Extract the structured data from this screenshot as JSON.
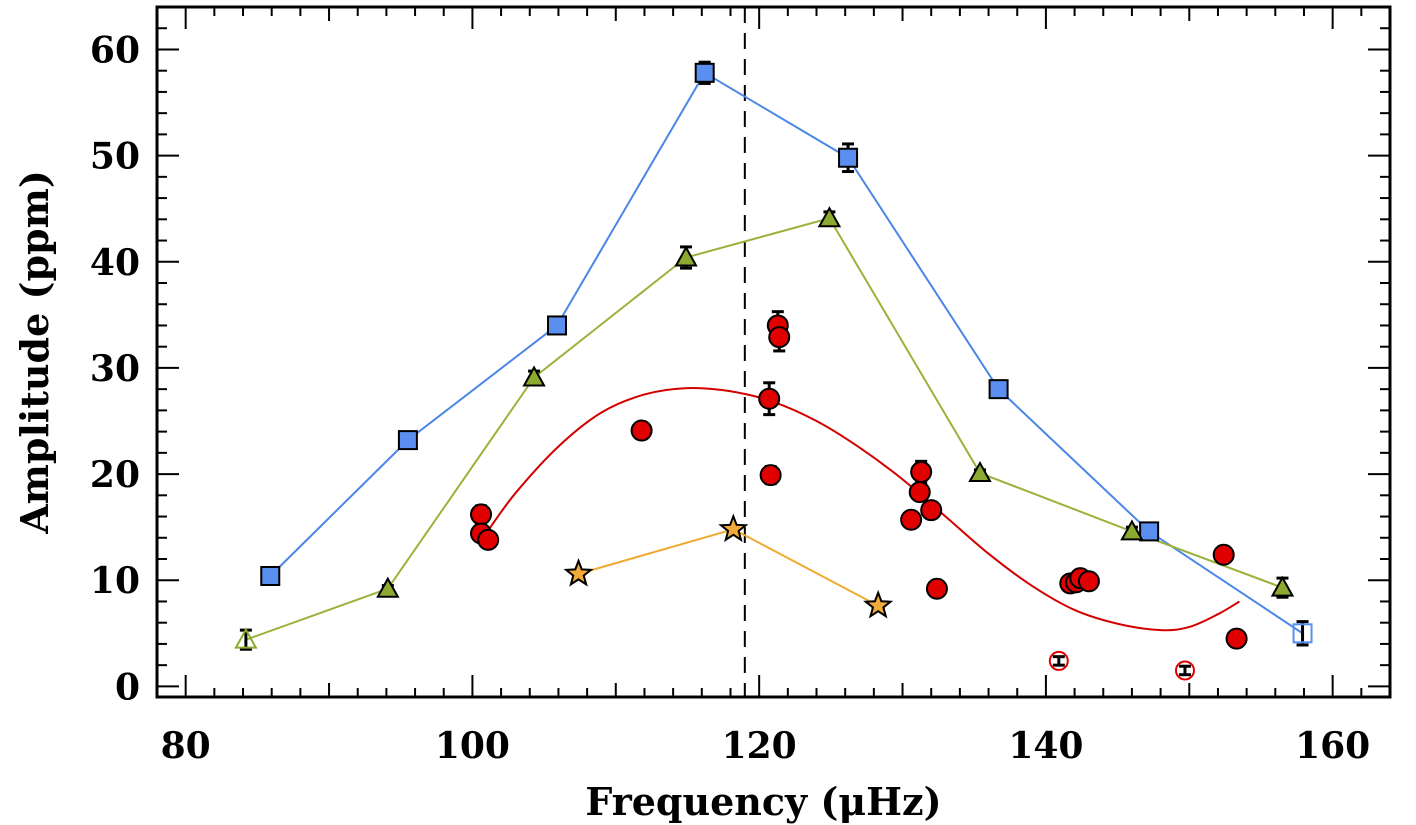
{
  "chart_data": {
    "type": "scatter",
    "xlabel": "Frequency (μHz)",
    "ylabel": "Amplitude (ppm)",
    "xlim": [
      78,
      164
    ],
    "ylim": [
      -1,
      64
    ],
    "xticks": [
      "80",
      "100",
      "120",
      "140",
      "160"
    ],
    "yticks": [
      "0",
      "10",
      "20",
      "30",
      "40",
      "50",
      "60"
    ],
    "xtick_values": [
      80,
      100,
      120,
      140,
      160
    ],
    "ytick_values": [
      0,
      10,
      20,
      30,
      40,
      50,
      60
    ],
    "vline_x": 119,
    "colors": {
      "blue": "#5B8FEF",
      "blue_line": "#4A86E8",
      "green": "#8BAA2F",
      "green_line": "#99B33A",
      "red": "#E00000",
      "red_line": "#D40000",
      "orange": "#F2AA3B",
      "orange_line": "#F0AA30"
    },
    "series": [
      {
        "name": "blue-squares",
        "marker": "square",
        "x": [
          85.9,
          95.5,
          105.9,
          116.2,
          126.2,
          136.7,
          147.2,
          157.9
        ],
        "y": [
          10.4,
          23.2,
          34.0,
          57.8,
          49.8,
          28.0,
          14.6,
          5.0
        ],
        "err": [
          0.5,
          0.6,
          0.7,
          1.0,
          1.3,
          0.5,
          0.5,
          1.1
        ],
        "open": [
          false,
          false,
          false,
          false,
          false,
          false,
          false,
          true
        ]
      },
      {
        "name": "green-triangles",
        "marker": "triangle",
        "x": [
          84.2,
          94.1,
          104.3,
          114.9,
          124.9,
          135.4,
          146.0,
          156.5
        ],
        "y": [
          4.4,
          9.2,
          29.1,
          40.4,
          44.1,
          20.1,
          14.6,
          9.3
        ],
        "err": [
          0.9,
          0.3,
          0.6,
          1.0,
          0.6,
          0.3,
          0.4,
          0.9
        ],
        "open": [
          true,
          false,
          false,
          false,
          false,
          false,
          false,
          false
        ]
      },
      {
        "name": "red-circles",
        "marker": "circle",
        "x": [
          100.6,
          100.6,
          101.1,
          111.8,
          120.7,
          120.8,
          121.3,
          121.4,
          130.6,
          131.2,
          131.3,
          132.0,
          132.4,
          141.7,
          142.1,
          142.4,
          143.0,
          152.4,
          153.3
        ],
        "y": [
          16.2,
          14.4,
          13.8,
          24.1,
          27.1,
          19.9,
          34.0,
          32.9,
          15.7,
          18.3,
          20.2,
          16.6,
          9.2,
          9.7,
          9.8,
          10.2,
          9.9,
          12.4,
          4.5
        ],
        "err": [
          0.8,
          0,
          0,
          0,
          1.5,
          0.8,
          1.3,
          1.3,
          0,
          0,
          1.0,
          0,
          0,
          0,
          0,
          0,
          0,
          0.7,
          0
        ]
      },
      {
        "name": "red-open-circles",
        "marker": "open-circle",
        "x": [
          140.9,
          149.7
        ],
        "y": [
          2.4,
          1.5
        ],
        "err": [
          0.4,
          0.4
        ]
      },
      {
        "name": "orange-stars",
        "marker": "star",
        "x": [
          107.4,
          118.2,
          128.3
        ],
        "y": [
          10.6,
          14.8,
          7.6
        ],
        "err": [
          0,
          0,
          0
        ]
      },
      {
        "name": "red-fit-curve",
        "marker": "line",
        "x": [
          101.0,
          103.0,
          106.0,
          109.0,
          112.0,
          115.0,
          118.0,
          121.0,
          124.0,
          127.0,
          130.0,
          133.0,
          136.0,
          139.0,
          142.0,
          145.0,
          148.0,
          150.0,
          152.0,
          153.5
        ],
        "y": [
          14.5,
          18.2,
          22.6,
          25.8,
          27.5,
          28.1,
          27.8,
          26.8,
          25.0,
          22.5,
          19.5,
          16.0,
          12.5,
          9.5,
          7.2,
          5.9,
          5.3,
          5.6,
          6.8,
          8.0
        ]
      }
    ]
  }
}
